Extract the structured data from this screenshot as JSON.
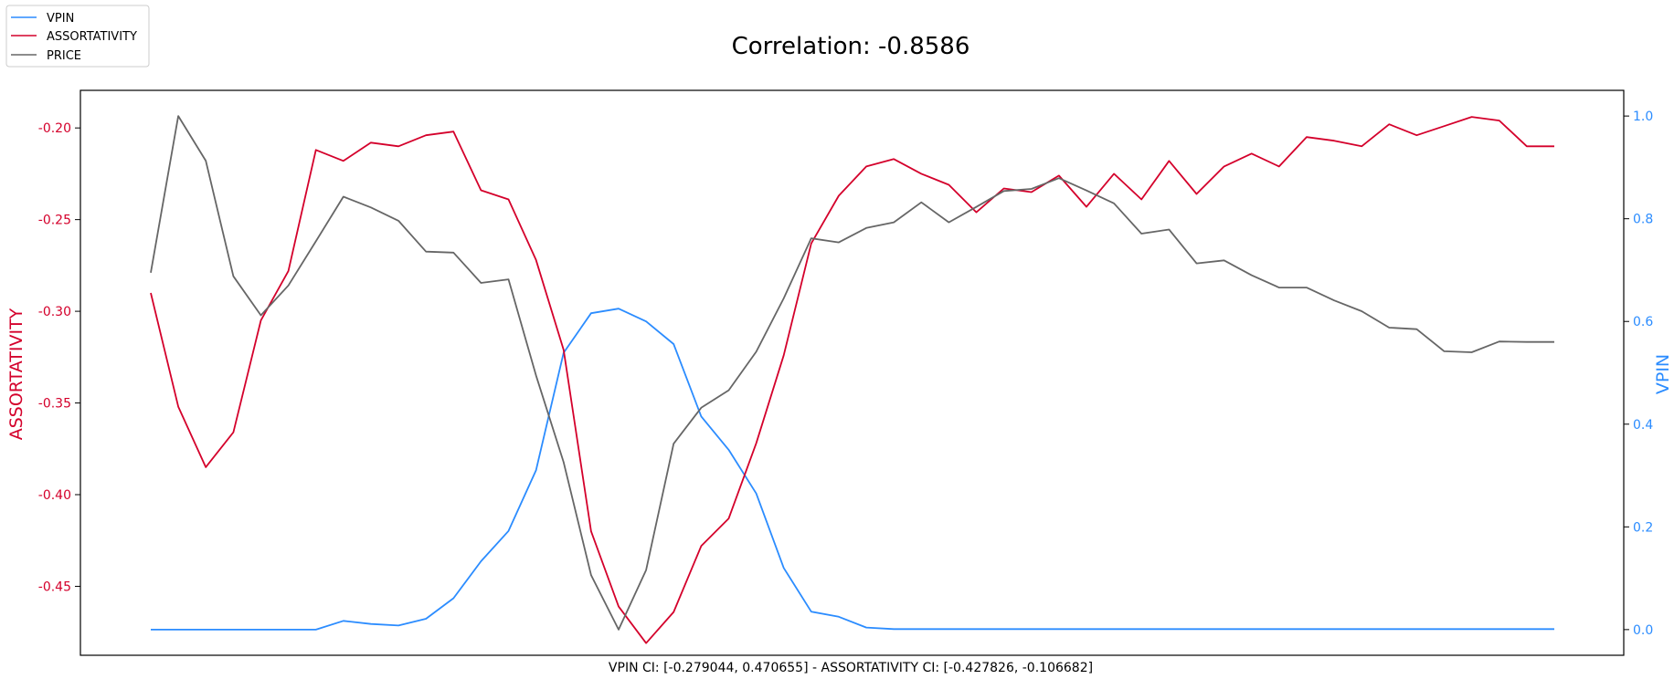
{
  "chart_data": {
    "type": "line",
    "title": "Correlation: -0.8586",
    "xlabel": "VPIN CI: [-0.279044, 0.470655] - ASSORTATIVITY CI: [-0.427826, -0.106682]",
    "ylabel_left": "ASSORTATIVITY",
    "ylabel_right": "VPIN",
    "ylim_left": [
      -0.4876,
      -0.1795
    ],
    "ylim_right": [
      -0.05,
      1.05
    ],
    "yticks_left": [
      "-0.20",
      "-0.25",
      "-0.30",
      "-0.35",
      "-0.40",
      "-0.45"
    ],
    "yticks_right": [
      "0.0",
      "0.2",
      "0.4",
      "0.6",
      "0.8",
      "1.0"
    ],
    "x": [
      0,
      1,
      2,
      3,
      4,
      5,
      6,
      7,
      8,
      9,
      10,
      11,
      12,
      13,
      14,
      15,
      16,
      17,
      18,
      19,
      20,
      21,
      22,
      23,
      24,
      25,
      26,
      27,
      28,
      29,
      30,
      31,
      32,
      33,
      34,
      35,
      36,
      37,
      38,
      39,
      40,
      41,
      42,
      43,
      44,
      45,
      46,
      47,
      48,
      49,
      50,
      51
    ],
    "grid": false,
    "legend_position": "top-left",
    "colors": {
      "VPIN": "#2b8cff",
      "ASSORTATIVITY": "#d4002b",
      "PRICE": "#666666"
    },
    "series": [
      {
        "name": "VPIN",
        "axis": "right",
        "values": [
          0.0,
          0.0,
          0.0,
          0.0,
          0.0,
          0.0,
          0.0,
          0.017,
          0.011,
          0.008,
          0.021,
          0.061,
          0.133,
          0.192,
          0.31,
          0.539,
          0.616,
          0.625,
          0.6,
          0.556,
          0.415,
          0.35,
          0.265,
          0.12,
          0.035,
          0.025,
          0.004,
          0.001,
          0.001,
          0.001,
          0.001,
          0.001,
          0.001,
          0.001,
          0.001,
          0.001,
          0.001,
          0.001,
          0.001,
          0.001,
          0.001,
          0.001,
          0.001,
          0.001,
          0.001,
          0.001,
          0.001,
          0.001,
          0.001,
          0.001,
          0.001,
          0.001
        ]
      },
      {
        "name": "ASSORTATIVITY",
        "axis": "left",
        "values": [
          -0.29,
          -0.352,
          -0.385,
          -0.366,
          -0.305,
          -0.278,
          -0.212,
          -0.218,
          -0.208,
          -0.21,
          -0.204,
          -0.202,
          -0.234,
          -0.239,
          -0.272,
          -0.321,
          -0.42,
          -0.461,
          -0.481,
          -0.464,
          -0.428,
          -0.413,
          -0.372,
          -0.324,
          -0.263,
          -0.237,
          -0.221,
          -0.217,
          -0.225,
          -0.231,
          -0.246,
          -0.233,
          -0.235,
          -0.226,
          -0.243,
          -0.225,
          -0.239,
          -0.218,
          -0.236,
          -0.221,
          -0.214,
          -0.221,
          -0.205,
          -0.207,
          -0.21,
          -0.198,
          -0.204,
          -0.199,
          -0.194,
          -0.196,
          -0.21,
          -0.21
        ]
      },
      {
        "name": "PRICE",
        "axis": "right",
        "values": [
          0.695,
          1.0,
          0.913,
          0.688,
          0.612,
          0.67,
          0.756,
          0.843,
          0.822,
          0.796,
          0.736,
          0.734,
          0.675,
          0.682,
          0.495,
          0.326,
          0.106,
          0.0,
          0.116,
          0.362,
          0.432,
          0.466,
          0.541,
          0.645,
          0.762,
          0.754,
          0.782,
          0.793,
          0.832,
          0.793,
          0.823,
          0.854,
          0.858,
          0.879,
          0.855,
          0.83,
          0.771,
          0.779,
          0.713,
          0.719,
          0.69,
          0.666,
          0.666,
          0.641,
          0.62,
          0.588,
          0.585,
          0.542,
          0.54,
          0.561,
          0.56,
          0.56
        ]
      }
    ]
  }
}
